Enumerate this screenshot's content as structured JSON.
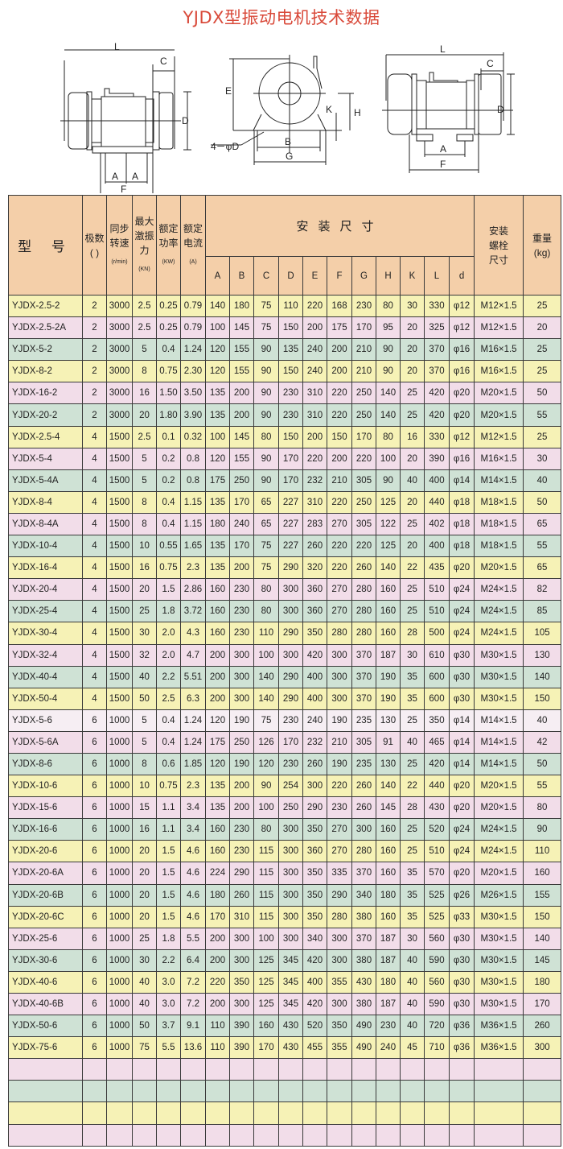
{
  "title": "YJDX型振动电机技术数据",
  "diagrams": {
    "left": {
      "L": "L",
      "C": "C",
      "D": "D",
      "A1": "A",
      "A2": "A",
      "F": "F"
    },
    "middle": {
      "E": "E",
      "K": "K",
      "H": "H",
      "B": "B",
      "G": "G",
      "hole": "4－φD"
    },
    "right": {
      "L": "L",
      "C": "C",
      "D": "D",
      "A": "A",
      "F": "F"
    }
  },
  "colors": {
    "header": "#f4cfa9",
    "yellow": "#f6f2b6",
    "pink": "#f2dde9",
    "green": "#cfe2d5",
    "title": "#d94a3a"
  },
  "table": {
    "headers": {
      "model": "型  号",
      "poles": "极数",
      "poles_unit": "(  )",
      "speed": "同步转速",
      "speed_unit": "(r/min)",
      "force": "最大激振力",
      "force_unit": "(KN)",
      "power": "额定功率",
      "power_unit": "(KW)",
      "current": "额定电流",
      "current_unit": "(A)",
      "dimensions": "安装尺寸",
      "dims": [
        "A",
        "B",
        "C",
        "D",
        "E",
        "F",
        "G",
        "H",
        "K",
        "L",
        "d"
      ],
      "bolt": "安装螺栓尺寸",
      "weight": "重量",
      "weight_unit": "(kg)"
    },
    "rows": [
      {
        "tone": "y",
        "cells": [
          "YJDX-2.5-2",
          "2",
          "3000",
          "2.5",
          "0.25",
          "0.79",
          "140",
          "180",
          "75",
          "110",
          "220",
          "168",
          "230",
          "80",
          "30",
          "330",
          "φ12",
          "M12×1.5",
          "25"
        ]
      },
      {
        "tone": "p",
        "cells": [
          "YJDX-2.5-2A",
          "2",
          "3000",
          "2.5",
          "0.25",
          "0.79",
          "100",
          "145",
          "75",
          "150",
          "200",
          "175",
          "170",
          "95",
          "20",
          "325",
          "φ12",
          "M12×1.5",
          "20"
        ]
      },
      {
        "tone": "g",
        "cells": [
          "YJDX-5-2",
          "2",
          "3000",
          "5",
          "0.4",
          "1.24",
          "120",
          "155",
          "90",
          "135",
          "240",
          "200",
          "210",
          "90",
          "20",
          "370",
          "φ16",
          "M16×1.5",
          "25"
        ]
      },
      {
        "tone": "y",
        "cells": [
          "YJDX-8-2",
          "2",
          "3000",
          "8",
          "0.75",
          "2.30",
          "120",
          "155",
          "90",
          "150",
          "240",
          "200",
          "210",
          "90",
          "20",
          "370",
          "φ16",
          "M16×1.5",
          "25"
        ]
      },
      {
        "tone": "p",
        "cells": [
          "YJDX-16-2",
          "2",
          "3000",
          "16",
          "1.50",
          "3.50",
          "135",
          "200",
          "90",
          "230",
          "310",
          "220",
          "250",
          "140",
          "25",
          "420",
          "φ20",
          "M20×1.5",
          "50"
        ]
      },
      {
        "tone": "g",
        "cells": [
          "YJDX-20-2",
          "2",
          "3000",
          "20",
          "1.80",
          "3.90",
          "135",
          "200",
          "90",
          "230",
          "310",
          "220",
          "250",
          "140",
          "25",
          "420",
          "φ20",
          "M20×1.5",
          "55"
        ]
      },
      {
        "tone": "y",
        "cells": [
          "YJDX-2.5-4",
          "4",
          "1500",
          "2.5",
          "0.1",
          "0.32",
          "100",
          "145",
          "80",
          "150",
          "200",
          "150",
          "170",
          "80",
          "16",
          "330",
          "φ12",
          "M12×1.5",
          "25"
        ]
      },
      {
        "tone": "p",
        "cells": [
          "YJDX-5-4",
          "4",
          "1500",
          "5",
          "0.2",
          "0.8",
          "120",
          "155",
          "90",
          "170",
          "220",
          "200",
          "220",
          "100",
          "20",
          "390",
          "φ16",
          "M16×1.5",
          "30"
        ]
      },
      {
        "tone": "g",
        "cells": [
          "YJDX-5-4A",
          "4",
          "1500",
          "5",
          "0.2",
          "0.8",
          "175",
          "250",
          "90",
          "170",
          "232",
          "210",
          "305",
          "90",
          "40",
          "400",
          "φ14",
          "M14×1.5",
          "40"
        ]
      },
      {
        "tone": "y",
        "cells": [
          "YJDX-8-4",
          "4",
          "1500",
          "8",
          "0.4",
          "1.15",
          "135",
          "170",
          "65",
          "227",
          "310",
          "220",
          "250",
          "125",
          "20",
          "440",
          "φ18",
          "M18×1.5",
          "50"
        ]
      },
      {
        "tone": "p",
        "cells": [
          "YJDX-8-4A",
          "4",
          "1500",
          "8",
          "0.4",
          "1.15",
          "180",
          "240",
          "65",
          "227",
          "283",
          "270",
          "305",
          "122",
          "25",
          "402",
          "φ18",
          "M18×1.5",
          "65"
        ]
      },
      {
        "tone": "g",
        "cells": [
          "YJDX-10-4",
          "4",
          "1500",
          "10",
          "0.55",
          "1.65",
          "135",
          "170",
          "75",
          "227",
          "260",
          "220",
          "220",
          "125",
          "20",
          "400",
          "φ18",
          "M18×1.5",
          "55"
        ]
      },
      {
        "tone": "y",
        "cells": [
          "YJDX-16-4",
          "4",
          "1500",
          "16",
          "0.75",
          "2.3",
          "135",
          "200",
          "75",
          "290",
          "320",
          "220",
          "260",
          "140",
          "22",
          "435",
          "φ20",
          "M20×1.5",
          "65"
        ]
      },
      {
        "tone": "p",
        "cells": [
          "YJDX-20-4",
          "4",
          "1500",
          "20",
          "1.5",
          "2.86",
          "160",
          "230",
          "80",
          "300",
          "360",
          "270",
          "280",
          "160",
          "25",
          "510",
          "φ24",
          "M24×1.5",
          "82"
        ]
      },
      {
        "tone": "g",
        "cells": [
          "YJDX-25-4",
          "4",
          "1500",
          "25",
          "1.8",
          "3.72",
          "160",
          "230",
          "80",
          "300",
          "360",
          "270",
          "280",
          "160",
          "25",
          "510",
          "φ24",
          "M24×1.5",
          "85"
        ]
      },
      {
        "tone": "y",
        "cells": [
          "YJDX-30-4",
          "4",
          "1500",
          "30",
          "2.0",
          "4.3",
          "160",
          "230",
          "110",
          "290",
          "350",
          "280",
          "280",
          "160",
          "28",
          "500",
          "φ24",
          "M24×1.5",
          "105"
        ]
      },
      {
        "tone": "p",
        "cells": [
          "YJDX-32-4",
          "4",
          "1500",
          "32",
          "2.0",
          "4.7",
          "200",
          "300",
          "100",
          "300",
          "420",
          "300",
          "370",
          "187",
          "30",
          "610",
          "φ30",
          "M30×1.5",
          "130"
        ]
      },
      {
        "tone": "g",
        "cells": [
          "YJDX-40-4",
          "4",
          "1500",
          "40",
          "2.2",
          "5.51",
          "200",
          "300",
          "140",
          "290",
          "400",
          "300",
          "370",
          "190",
          "35",
          "600",
          "φ30",
          "M30×1.5",
          "140"
        ]
      },
      {
        "tone": "y",
        "cells": [
          "YJDX-50-4",
          "4",
          "1500",
          "50",
          "2.5",
          "6.3",
          "200",
          "300",
          "140",
          "290",
          "400",
          "300",
          "370",
          "190",
          "35",
          "600",
          "φ30",
          "M30×1.5",
          "150"
        ]
      },
      {
        "tone": "w",
        "cells": [
          "YJDX-5-6",
          "6",
          "1000",
          "5",
          "0.4",
          "1.24",
          "120",
          "190",
          "75",
          "230",
          "240",
          "190",
          "235",
          "130",
          "25",
          "350",
          "φ14",
          "M14×1.5",
          "40"
        ]
      },
      {
        "tone": "p",
        "cells": [
          "YJDX-5-6A",
          "6",
          "1000",
          "5",
          "0.4",
          "1.24",
          "175",
          "250",
          "126",
          "170",
          "232",
          "210",
          "305",
          "91",
          "40",
          "465",
          "φ14",
          "M14×1.5",
          "42"
        ]
      },
      {
        "tone": "g",
        "cells": [
          "YJDX-8-6",
          "6",
          "1000",
          "8",
          "0.6",
          "1.85",
          "120",
          "190",
          "120",
          "230",
          "260",
          "190",
          "235",
          "130",
          "25",
          "420",
          "φ14",
          "M14×1.5",
          "50"
        ]
      },
      {
        "tone": "y",
        "cells": [
          "YJDX-10-6",
          "6",
          "1000",
          "10",
          "0.75",
          "2.3",
          "135",
          "200",
          "90",
          "254",
          "300",
          "220",
          "260",
          "140",
          "22",
          "440",
          "φ20",
          "M20×1.5",
          "55"
        ]
      },
      {
        "tone": "p",
        "cells": [
          "YJDX-15-6",
          "6",
          "1000",
          "15",
          "1.1",
          "3.4",
          "135",
          "200",
          "100",
          "250",
          "290",
          "230",
          "260",
          "145",
          "28",
          "430",
          "φ20",
          "M20×1.5",
          "80"
        ]
      },
      {
        "tone": "g",
        "cells": [
          "YJDX-16-6",
          "6",
          "1000",
          "16",
          "1.1",
          "3.4",
          "160",
          "230",
          "80",
          "300",
          "350",
          "270",
          "300",
          "160",
          "25",
          "520",
          "φ24",
          "M24×1.5",
          "90"
        ]
      },
      {
        "tone": "y",
        "cells": [
          "YJDX-20-6",
          "6",
          "1000",
          "20",
          "1.5",
          "4.6",
          "160",
          "230",
          "115",
          "300",
          "360",
          "270",
          "280",
          "160",
          "25",
          "510",
          "φ24",
          "M24×1.5",
          "110"
        ]
      },
      {
        "tone": "p",
        "cells": [
          "YJDX-20-6A",
          "6",
          "1000",
          "20",
          "1.5",
          "4.6",
          "224",
          "290",
          "115",
          "300",
          "350",
          "335",
          "370",
          "160",
          "35",
          "570",
          "φ20",
          "M20×1.5",
          "160"
        ]
      },
      {
        "tone": "g",
        "cells": [
          "YJDX-20-6B",
          "6",
          "1000",
          "20",
          "1.5",
          "4.6",
          "180",
          "260",
          "115",
          "300",
          "350",
          "290",
          "340",
          "180",
          "35",
          "525",
          "φ26",
          "M26×1.5",
          "155"
        ]
      },
      {
        "tone": "y",
        "cells": [
          "YJDX-20-6C",
          "6",
          "1000",
          "20",
          "1.5",
          "4.6",
          "170",
          "310",
          "115",
          "300",
          "350",
          "280",
          "380",
          "160",
          "35",
          "525",
          "φ33",
          "M30×1.5",
          "150"
        ]
      },
      {
        "tone": "p",
        "cells": [
          "YJDX-25-6",
          "6",
          "1000",
          "25",
          "1.8",
          "5.5",
          "200",
          "300",
          "100",
          "300",
          "340",
          "300",
          "370",
          "187",
          "30",
          "560",
          "φ30",
          "M30×1.5",
          "140"
        ]
      },
      {
        "tone": "g",
        "cells": [
          "YJDX-30-6",
          "6",
          "1000",
          "30",
          "2.2",
          "6.4",
          "200",
          "300",
          "125",
          "345",
          "420",
          "300",
          "380",
          "187",
          "40",
          "590",
          "φ30",
          "M30×1.5",
          "145"
        ]
      },
      {
        "tone": "y",
        "cells": [
          "YJDX-40-6",
          "6",
          "1000",
          "40",
          "3.0",
          "7.2",
          "220",
          "350",
          "125",
          "345",
          "400",
          "355",
          "430",
          "180",
          "40",
          "560",
          "φ30",
          "M30×1.5",
          "180"
        ]
      },
      {
        "tone": "p",
        "cells": [
          "YJDX-40-6B",
          "6",
          "1000",
          "40",
          "3.0",
          "7.2",
          "200",
          "300",
          "125",
          "345",
          "420",
          "300",
          "380",
          "187",
          "40",
          "590",
          "φ30",
          "M30×1.5",
          "170"
        ]
      },
      {
        "tone": "g",
        "cells": [
          "YJDX-50-6",
          "6",
          "1000",
          "50",
          "3.7",
          "9.1",
          "110",
          "390",
          "160",
          "430",
          "520",
          "350",
          "490",
          "230",
          "40",
          "720",
          "φ36",
          "M36×1.5",
          "260"
        ]
      },
      {
        "tone": "y",
        "cells": [
          "YJDX-75-6",
          "6",
          "1000",
          "75",
          "5.5",
          "13.6",
          "110",
          "390",
          "170",
          "430",
          "455",
          "355",
          "490",
          "240",
          "45",
          "710",
          "φ36",
          "M36×1.5",
          "300"
        ]
      },
      {
        "tone": "p",
        "cells": []
      },
      {
        "tone": "g",
        "cells": []
      },
      {
        "tone": "y",
        "cells": []
      },
      {
        "tone": "p",
        "cells": []
      }
    ]
  }
}
